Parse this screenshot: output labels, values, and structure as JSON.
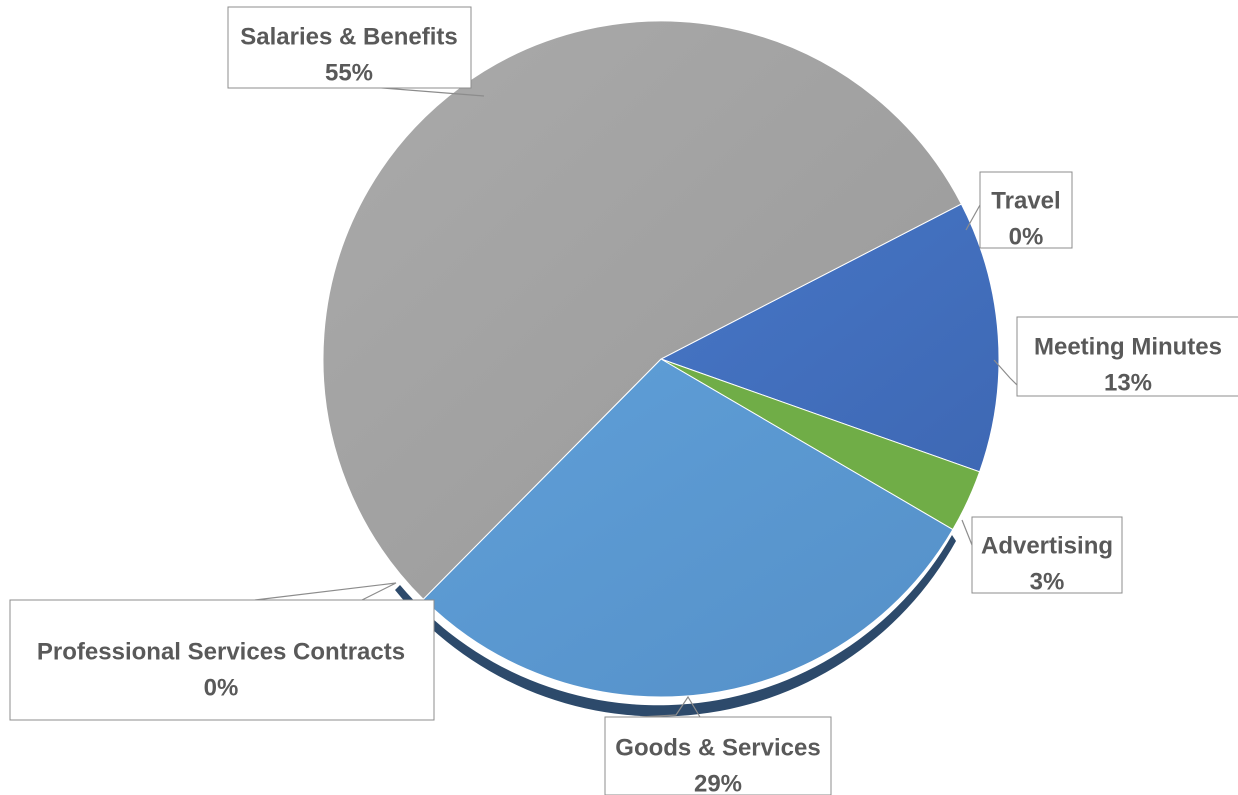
{
  "chart_data": {
    "type": "pie",
    "title": "",
    "start_angle_deg": -27.3,
    "slices": [
      {
        "name": "Travel",
        "value": 0,
        "label": "0%",
        "color": "#4a7cc4"
      },
      {
        "name": "Meeting Minutes",
        "value": 13,
        "label": "13%",
        "color": "#4472c4"
      },
      {
        "name": "Advertising",
        "value": 3,
        "label": "3%",
        "color": "#70ad47"
      },
      {
        "name": "Goods & Services",
        "value": 29,
        "label": "29%",
        "color": "#5b9bd5"
      },
      {
        "name": "Professional Services Contracts",
        "value": 0,
        "label": "0%",
        "color": "#5a6b7f"
      },
      {
        "name": "Salaries & Benefits",
        "value": 55,
        "label": "55%",
        "color": "#a5a5a5"
      }
    ],
    "legend": "none"
  }
}
